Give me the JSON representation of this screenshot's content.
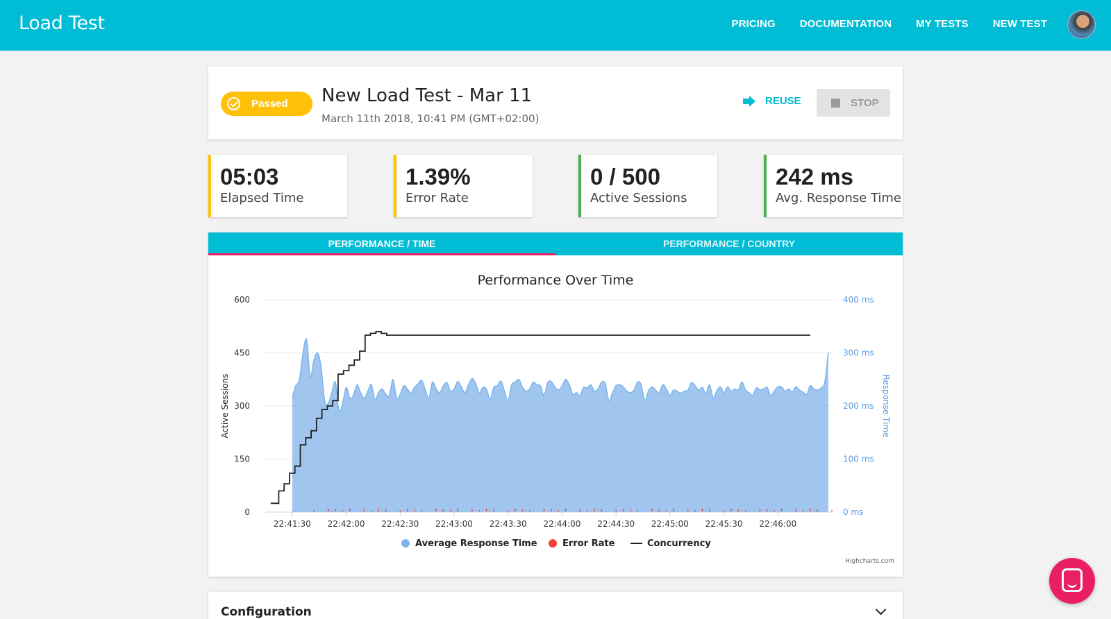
{
  "app": {
    "brand": "Load Test",
    "nav": [
      "PRICING",
      "DOCUMENTATION",
      "MY TESTS",
      "NEW TEST"
    ]
  },
  "header": {
    "status": "Passed",
    "title": "New Load Test - Mar 11",
    "date": "March 11th 2018, 10:41 PM (GMT+02:00)",
    "reuse_label": "REUSE",
    "stop_label": "STOP"
  },
  "stats": [
    {
      "value": "05:03",
      "label": "Elapsed Time"
    },
    {
      "value": "1.39%",
      "label": "Error Rate"
    },
    {
      "value": "0 / 500",
      "label": "Active Sessions"
    },
    {
      "value": "242 ms",
      "label": "Avg. Response Time"
    }
  ],
  "tabs": [
    "PERFORMANCE / TIME",
    "PERFORMANCE / COUNTRY"
  ],
  "config": {
    "title": "Configuration"
  },
  "colors": {
    "accent": "#00bcd4",
    "passed": "#ffc107",
    "ok": "#4caf50",
    "area": "#8fbbec",
    "error": "#f44336",
    "chat": "#e91e63"
  },
  "chart_data": {
    "type": "area",
    "title": "Performance Over Time",
    "y_left_label": "Active Sessions",
    "y_right_label": "Response Time",
    "y_left_ticks": [
      "0",
      "150",
      "300",
      "450",
      "600"
    ],
    "y_right_ticks": [
      "0 ms",
      "100 ms",
      "200 ms",
      "300 ms",
      "400 ms"
    ],
    "x_ticks": [
      "22:41:30",
      "22:42:00",
      "22:42:30",
      "22:43:00",
      "22:43:30",
      "22:44:00",
      "22:44:30",
      "22:45:00",
      "22:45:30",
      "22:46:00"
    ],
    "ylim_left": [
      0,
      600
    ],
    "ylim_right": [
      0,
      400
    ],
    "credit": "Highcharts.com",
    "legend": [
      "Average Response Time",
      "Error Rate",
      "Concurrency"
    ],
    "series": [
      {
        "name": "Average Response Time",
        "x_seconds": [
          0,
          2,
          4,
          6,
          8,
          10,
          12,
          14,
          16,
          18,
          20,
          22,
          24,
          26,
          28,
          30,
          32,
          34,
          36,
          38,
          40,
          42,
          44,
          46,
          48,
          50,
          52,
          54,
          56,
          58,
          60,
          62,
          64,
          66,
          68,
          70,
          72,
          74,
          76,
          78,
          80,
          82,
          84,
          86,
          88,
          90,
          92,
          94,
          96,
          98,
          100,
          102,
          104,
          106,
          108,
          110,
          112,
          114,
          116,
          118,
          120,
          122,
          124,
          126,
          128,
          130,
          132,
          134,
          136,
          138,
          140,
          142,
          144,
          146,
          148,
          150,
          152,
          154,
          156,
          158,
          160,
          162,
          164,
          166,
          168,
          170,
          172,
          174,
          176,
          178,
          180,
          182,
          184,
          186,
          188,
          190,
          192,
          194,
          196,
          198,
          200,
          202,
          204,
          206,
          208,
          210,
          212,
          214,
          216,
          218,
          220,
          222,
          224,
          226,
          228,
          230,
          232,
          234,
          236,
          238,
          240,
          242,
          244,
          246,
          248,
          250,
          252,
          254,
          256,
          258,
          260,
          262,
          264,
          266,
          268,
          270,
          272,
          274,
          276,
          278,
          280,
          282,
          284,
          286,
          288,
          290,
          292,
          294,
          296,
          298
        ],
        "values": [
          215,
          238,
          250,
          300,
          325,
          255,
          285,
          300,
          275,
          210,
          205,
          225,
          245,
          190,
          205,
          235,
          215,
          220,
          240,
          225,
          215,
          228,
          240,
          212,
          225,
          232,
          222,
          220,
          250,
          215,
          222,
          238,
          232,
          225,
          235,
          242,
          248,
          230,
          215,
          245,
          232,
          225,
          238,
          244,
          228,
          232,
          246,
          236,
          225,
          240,
          252,
          242,
          225,
          235,
          232,
          212,
          235,
          238,
          247,
          228,
          210,
          240,
          245,
          250,
          235,
          228,
          232,
          245,
          240,
          238,
          220,
          244,
          246,
          236,
          230,
          238,
          250,
          240,
          222,
          225,
          220,
          235,
          234,
          240,
          228,
          232,
          245,
          242,
          210,
          224,
          238,
          240,
          236,
          228,
          225,
          230,
          245,
          240,
          210,
          228,
          236,
          230,
          225,
          240,
          232,
          220,
          230,
          228,
          224,
          228,
          230,
          244,
          238,
          230,
          235,
          222,
          240,
          215,
          228,
          236,
          225,
          236,
          228,
          232,
          230,
          245,
          230,
          225,
          220,
          234,
          230,
          232,
          235,
          220,
          228,
          236,
          236,
          228,
          232,
          226,
          236,
          230,
          226,
          222,
          238,
          232,
          230,
          234,
          244,
          300
        ]
      },
      {
        "name": "Error Rate",
        "note": "small red markers near 0 throughout the run"
      },
      {
        "name": "Concurrency",
        "x_seconds": [
          0,
          3,
          6,
          9,
          12,
          15,
          18,
          21,
          24,
          27,
          30,
          33,
          36,
          39,
          42,
          45,
          48,
          51,
          54,
          57,
          60,
          63,
          66,
          69,
          72,
          75,
          78,
          81,
          84,
          86,
          88,
          90,
          100,
          130,
          160,
          190,
          220,
          250,
          280,
          300
        ],
        "values": [
          25,
          25,
          60,
          80,
          110,
          130,
          190,
          210,
          230,
          265,
          290,
          300,
          315,
          390,
          400,
          415,
          430,
          455,
          500,
          505,
          510,
          505,
          500,
          500,
          500,
          500,
          500,
          500,
          500,
          500,
          500,
          500,
          500,
          500,
          500,
          500,
          500,
          500,
          500,
          500
        ]
      }
    ]
  }
}
